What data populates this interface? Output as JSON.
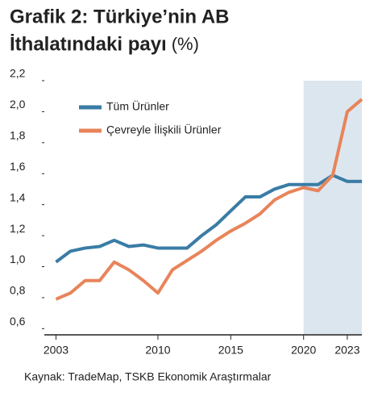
{
  "chart_data": {
    "type": "line",
    "title": [
      "Grafik 2: Türkiye’nin AB",
      "İthalatındaki payı"
    ],
    "title_unit": "(%)",
    "source": "Kaynak: TradeMap, TSKB Ekonomik Araştırmalar",
    "x": [
      2003,
      2004,
      2005,
      2006,
      2007,
      2008,
      2009,
      2010,
      2011,
      2012,
      2013,
      2014,
      2015,
      2016,
      2017,
      2018,
      2019,
      2020,
      2021,
      2022,
      2023,
      2024
    ],
    "series": [
      {
        "name": "Tüm Ürünler",
        "color": "#3a7ca5",
        "values": [
          1.03,
          1.1,
          1.12,
          1.13,
          1.17,
          1.13,
          1.14,
          1.12,
          1.12,
          1.12,
          1.2,
          1.27,
          1.36,
          1.45,
          1.45,
          1.5,
          1.53,
          1.53,
          1.53,
          1.59,
          1.55,
          1.55
        ]
      },
      {
        "name": "Çevreyle İlişkili Ürünler",
        "color": "#e8845a",
        "values": [
          0.79,
          0.83,
          0.91,
          0.91,
          1.03,
          0.98,
          0.91,
          0.83,
          0.98,
          1.04,
          1.1,
          1.17,
          1.23,
          1.28,
          1.34,
          1.43,
          1.48,
          1.51,
          1.49,
          1.59,
          2.0,
          2.08
        ]
      }
    ],
    "xlim": [
      2002.2,
      2024
    ],
    "xticks": [
      2003,
      2010,
      2015,
      2020,
      2023
    ],
    "ylim": [
      0.56,
      2.2
    ],
    "yticks": [
      {
        "value": 0.6,
        "label": "0,6"
      },
      {
        "value": 0.8,
        "label": "0,8"
      },
      {
        "value": 1.0,
        "label": "1,0"
      },
      {
        "value": 1.2,
        "label": "1,2"
      },
      {
        "value": 1.4,
        "label": "1,4"
      },
      {
        "value": 1.6,
        "label": "1,6"
      },
      {
        "value": 1.8,
        "label": "1,8"
      },
      {
        "value": 2.0,
        "label": "2,0"
      },
      {
        "value": 2.2,
        "label": "2,2"
      }
    ],
    "highlight_range": [
      2020,
      2024
    ],
    "highlight_color": "#dce6ef",
    "grid": false
  }
}
